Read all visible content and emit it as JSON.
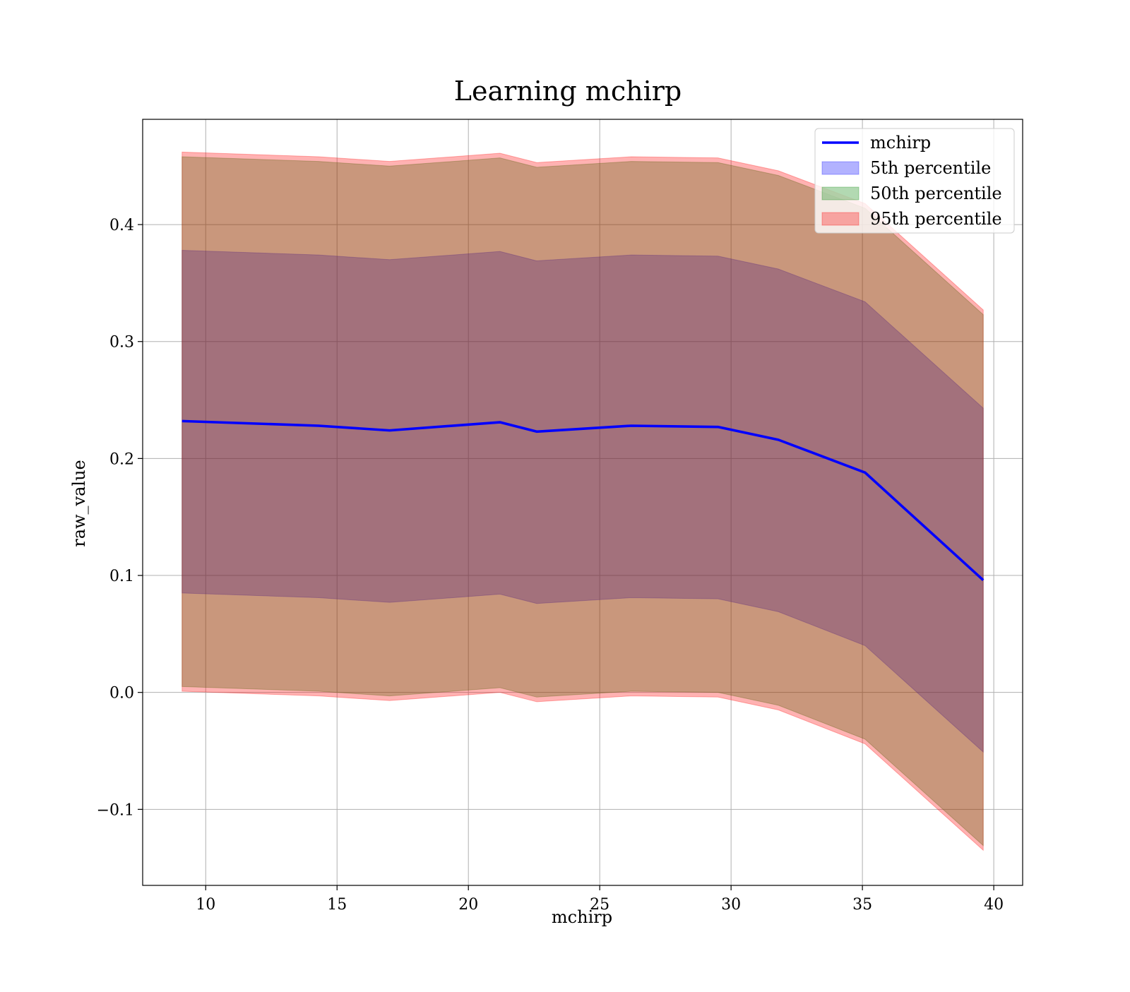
{
  "chart_data": {
    "type": "area",
    "title": "Learning mchirp",
    "xlabel": "mchirp",
    "ylabel": "raw_value",
    "xlim": [
      7.6,
      41.1
    ],
    "ylim": [
      -0.165,
      0.49
    ],
    "xticks": [
      10,
      15,
      20,
      25,
      30,
      35,
      40
    ],
    "yticks": [
      -0.1,
      0.0,
      0.1,
      0.2,
      0.3,
      0.4
    ],
    "ytick_labels": [
      "−0.1",
      "0.0",
      "0.1",
      "0.2",
      "0.3",
      "0.4"
    ],
    "grid": true,
    "legend_position": "upper-right",
    "x": [
      9.1,
      14.3,
      17.0,
      21.2,
      22.6,
      26.2,
      29.5,
      31.8,
      35.1,
      39.6
    ],
    "line": {
      "name": "mchirp",
      "color": "#0000ff",
      "values": [
        0.232,
        0.228,
        0.224,
        0.231,
        0.223,
        0.228,
        0.227,
        0.216,
        0.188,
        0.096
      ]
    },
    "bands": [
      {
        "name": "5th percentile",
        "color": "#0000ff",
        "upper": [
          0.378,
          0.374,
          0.37,
          0.377,
          0.369,
          0.374,
          0.373,
          0.362,
          0.334,
          0.243
        ],
        "lower": [
          0.085,
          0.081,
          0.077,
          0.084,
          0.076,
          0.081,
          0.08,
          0.069,
          0.04,
          -0.051
        ]
      },
      {
        "name": "50th percentile",
        "color": "#008000",
        "upper": [
          0.458,
          0.454,
          0.45,
          0.457,
          0.449,
          0.454,
          0.453,
          0.442,
          0.414,
          0.323
        ],
        "lower": [
          0.005,
          0.001,
          -0.003,
          0.004,
          -0.004,
          0.001,
          0.0,
          -0.011,
          -0.04,
          -0.131
        ]
      },
      {
        "name": "95th percentile",
        "color": "#ff0000",
        "upper": [
          0.462,
          0.458,
          0.454,
          0.461,
          0.453,
          0.458,
          0.457,
          0.446,
          0.418,
          0.327
        ],
        "lower": [
          0.001,
          -0.003,
          -0.007,
          0.0,
          -0.008,
          -0.003,
          -0.004,
          -0.015,
          -0.044,
          -0.135
        ]
      }
    ]
  }
}
